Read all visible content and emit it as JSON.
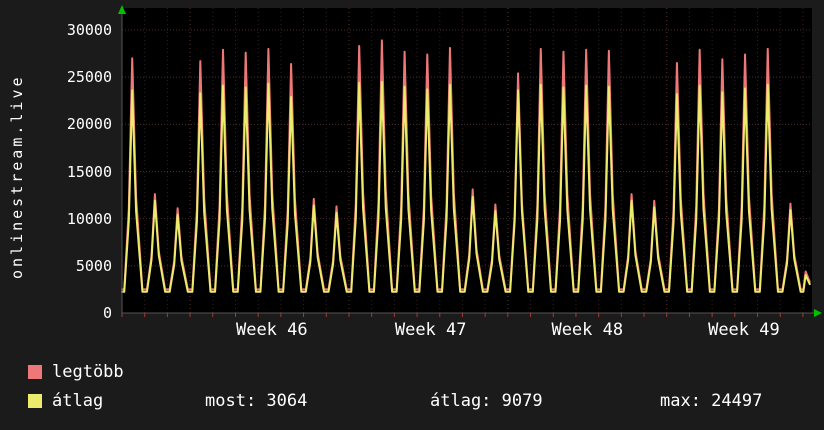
{
  "axis": {
    "left_title": "onlinestream.live"
  },
  "colors": {
    "background": "#1b1b1b",
    "plot_background": "#000000",
    "text": "#ffffff",
    "grid_major": "#4d2d2d",
    "grid_minor": "#2d2222",
    "grid_week": "#5a3232",
    "axis_line": "#555555",
    "axis_arrow": "#00c000",
    "tick": "#aa3838",
    "series_legtobb": "#ee7777",
    "series_atlag": "#ecec6c"
  },
  "chart_data": {
    "type": "line",
    "title": "onlinestream.live",
    "ylabel": "onlinestream.live",
    "xlabel": "",
    "ylim": [
      0,
      30000
    ],
    "ytick_step": 5000,
    "yticks": [
      0,
      5000,
      10000,
      15000,
      20000,
      25000,
      30000
    ],
    "x_unit": "day",
    "days_visible": 30.4,
    "week_labels": [
      {
        "label": "Week 46",
        "day": 6.6
      },
      {
        "label": "Week 47",
        "day": 13.6
      },
      {
        "label": "Week 48",
        "day": 20.5
      },
      {
        "label": "Week 49",
        "day": 27.4
      }
    ],
    "week_start_days": [
      3,
      10,
      17,
      24
    ],
    "series": [
      {
        "key": "legtobb",
        "name": "legtöbb",
        "color": "#ee7777",
        "trough": 2500,
        "tail_peak": 4400,
        "current": 3300,
        "daily_peaks": [
          27000,
          12600,
          11100,
          26700,
          27900,
          27600,
          28000,
          26400,
          12100,
          11300,
          28300,
          28900,
          27700,
          27400,
          28100,
          13100,
          11500,
          25400,
          28000,
          27700,
          27900,
          27800,
          12600,
          11900,
          26500,
          27900,
          26900,
          27400,
          28000,
          11600
        ]
      },
      {
        "key": "atlag",
        "name": "átlag",
        "color": "#ecec6c",
        "trough": 2250,
        "tail_peak": 4000,
        "current": 3064,
        "daily_peaks": [
          23600,
          11900,
          10400,
          23300,
          24100,
          23900,
          24300,
          22900,
          11400,
          10600,
          24400,
          24497,
          24000,
          23700,
          24200,
          12300,
          10800,
          23600,
          24200,
          23900,
          24100,
          24000,
          11900,
          11200,
          23200,
          24100,
          23400,
          23800,
          24200,
          10900
        ]
      }
    ],
    "stats": {
      "most": 3064,
      "atlag": 9079,
      "max": 24497
    }
  },
  "legend": {
    "items": [
      {
        "label": "legtöbb",
        "color": "#ee7777"
      },
      {
        "label": "átlag",
        "color": "#ecec6c"
      }
    ],
    "stats": [
      {
        "name": "most",
        "text": "most: 3064"
      },
      {
        "name": "atlag",
        "text": "átlag: 9079"
      },
      {
        "name": "max",
        "text": "max: 24497"
      }
    ]
  }
}
